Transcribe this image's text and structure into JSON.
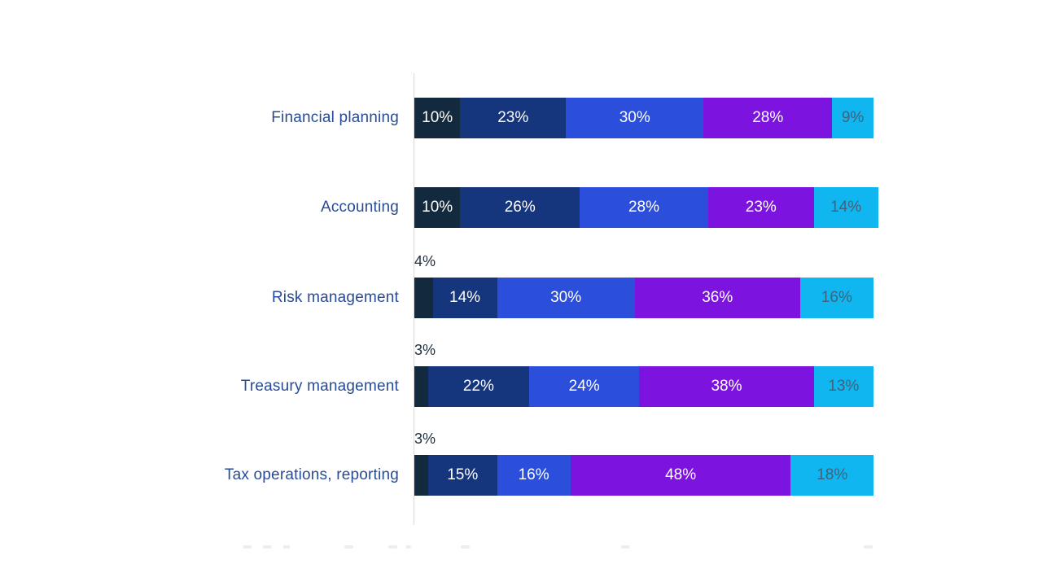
{
  "page": {
    "background_color": "#ffffff"
  },
  "chart_data": {
    "type": "bar",
    "variant": "horizontal-stacked",
    "unit": "%",
    "xlim": [
      0,
      100
    ],
    "grid": "single light vertical baseline at 0",
    "axis_line_color": "#d9d9d9",
    "category_label_color": "#274b96",
    "outside_label_color": "#20303f",
    "series_colors": [
      "#13293e",
      "#15357c",
      "#2b4edb",
      "#7d13df",
      "#0fb6f0"
    ],
    "label_color_on_cyan": "#45607a",
    "label_color_default": "#ffffff",
    "categories": [
      "Financial planning",
      "Accounting",
      "Risk management",
      "Treasury management",
      "Tax operations, reporting"
    ],
    "rows": [
      {
        "category": "Financial planning",
        "values": [
          10,
          23,
          30,
          28,
          9
        ],
        "labels": [
          "10%",
          "23%",
          "30%",
          "28%",
          "9%"
        ],
        "outside_label": ""
      },
      {
        "category": "Accounting",
        "values": [
          10,
          26,
          28,
          23,
          14
        ],
        "labels": [
          "10%",
          "26%",
          "28%",
          "23%",
          "14%"
        ],
        "outside_label": ""
      },
      {
        "category": "Risk management",
        "values": [
          4,
          14,
          30,
          36,
          16
        ],
        "labels": [
          "",
          "14%",
          "30%",
          "36%",
          "16%"
        ],
        "outside_label": "4%"
      },
      {
        "category": "Treasury management",
        "values": [
          3,
          22,
          24,
          38,
          13
        ],
        "labels": [
          "",
          "22%",
          "24%",
          "38%",
          "13%"
        ],
        "outside_label": "3%"
      },
      {
        "category": "Tax operations, reporting",
        "values": [
          3,
          15,
          16,
          48,
          18
        ],
        "labels": [
          "",
          "15%",
          "16%",
          "48%",
          "18%"
        ],
        "outside_label": "3%"
      }
    ],
    "legend_cut_off_at_bottom_edge": true,
    "legend_text_legible": false
  }
}
